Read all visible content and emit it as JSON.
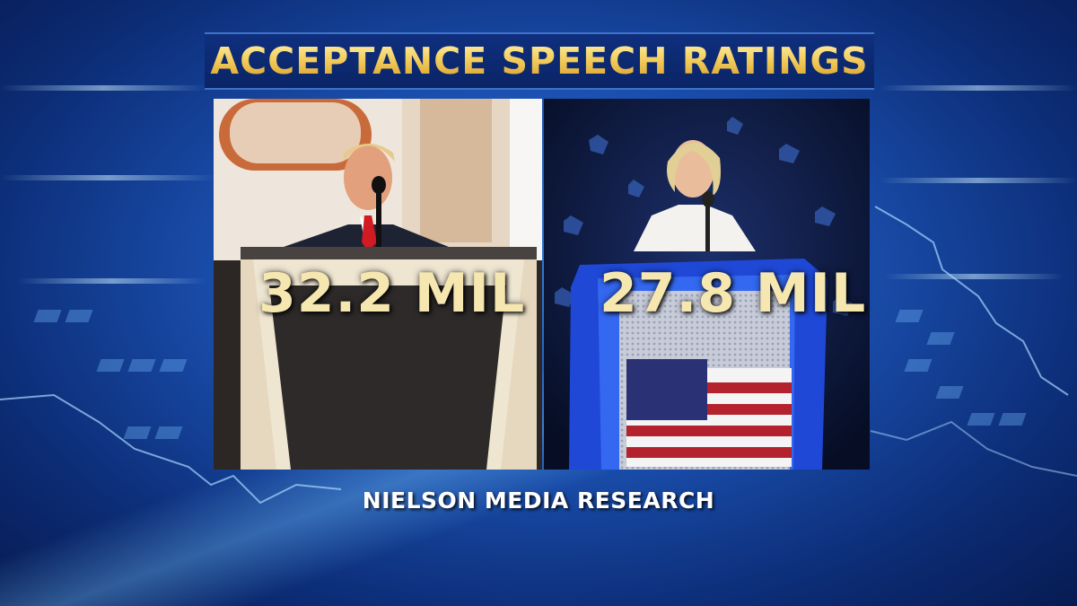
{
  "title": "ACCEPTANCE SPEECH RATINGS",
  "panels": [
    {
      "rating": "32.2 MIL"
    },
    {
      "rating": "27.8 MIL"
    }
  ],
  "source": "NIELSON MEDIA RESEARCH",
  "colors": {
    "title_gold": "#f4cf5e",
    "background_blue": "#1a4fae",
    "rating_text": "#f6e7b0"
  }
}
